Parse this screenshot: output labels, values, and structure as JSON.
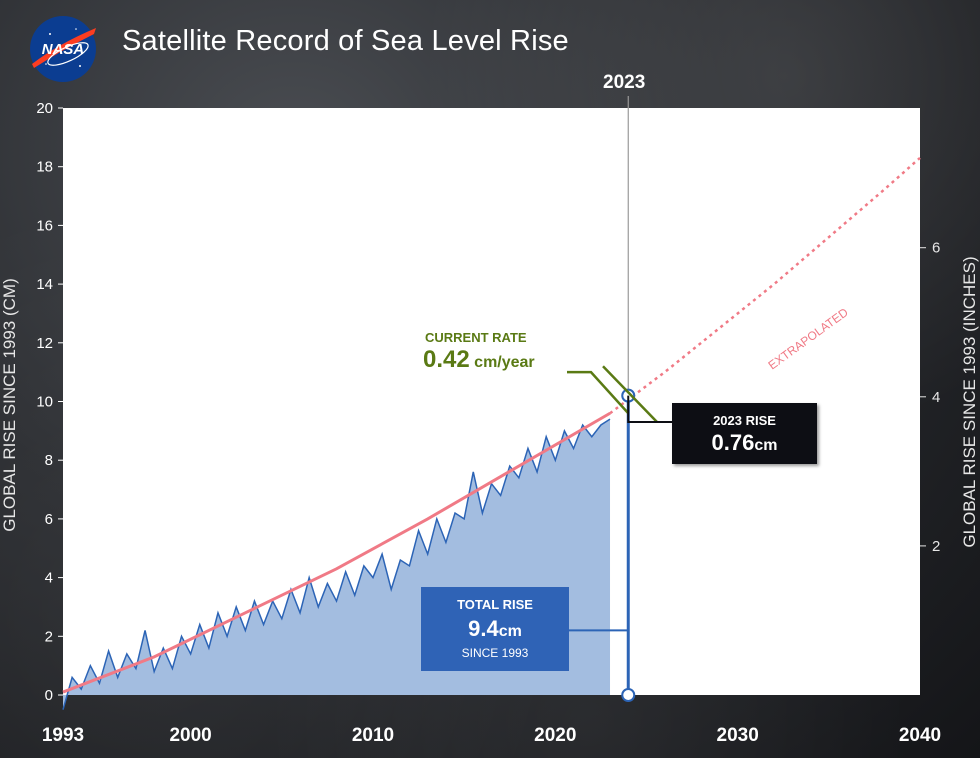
{
  "header": {
    "logo_text": "NASA",
    "title": "Satellite Record of Sea Level Rise"
  },
  "axes": {
    "left_title": "GLOBAL RISE SINCE 1993 (CM)",
    "right_title": "GLOBAL RISE SINCE 1993 (INCHES)",
    "marker_year": "2023"
  },
  "annotations": {
    "rate_label": "CURRENT RATE",
    "rate_value": "0.42",
    "rate_unit": " cm/year",
    "extrapolated_label": "EXTRAPOLATED",
    "rise_label": "2023 RISE",
    "rise_value": "0.76",
    "rise_unit": "cm",
    "total_label": "TOTAL RISE",
    "total_value": "9.4",
    "total_unit": "cm",
    "total_since": "SINCE 1993"
  },
  "colors": {
    "observed_fill": "#a3bde0",
    "observed_line": "#2c64b6",
    "trend_line": "#f07a86",
    "rate_green": "#5a7a14"
  },
  "chart_data": {
    "type": "area",
    "xlim": [
      1993,
      2040
    ],
    "ylim": [
      0,
      20
    ],
    "x_ticks": [
      1993,
      2000,
      2010,
      2020,
      2030,
      2040
    ],
    "x_tick_labels": [
      "1993",
      "2000",
      "2010",
      "2020",
      "2030",
      "2040"
    ],
    "y_ticks": [
      0,
      2,
      4,
      6,
      8,
      10,
      12,
      14,
      16,
      18,
      20
    ],
    "y_tick_labels": [
      "0",
      "2",
      "4",
      "6",
      "8",
      "10",
      "12",
      "14",
      "16",
      "18",
      "20"
    ],
    "right_axis": {
      "unit": "inches",
      "ticks": [
        2,
        4,
        6
      ],
      "tick_labels": [
        "2",
        "4",
        "6"
      ]
    },
    "series": [
      {
        "kind": "observed",
        "x": [
          1993.0,
          1993.5,
          1994.0,
          1994.5,
          1995.0,
          1995.5,
          1996.0,
          1996.5,
          1997.0,
          1997.5,
          1998.0,
          1998.5,
          1999.0,
          1999.5,
          2000.0,
          2000.5,
          2001.0,
          2001.5,
          2002.0,
          2002.5,
          2003.0,
          2003.5,
          2004.0,
          2004.5,
          2005.0,
          2005.5,
          2006.0,
          2006.5,
          2007.0,
          2007.5,
          2008.0,
          2008.5,
          2009.0,
          2009.5,
          2010.0,
          2010.5,
          2011.0,
          2011.5,
          2012.0,
          2012.5,
          2013.0,
          2013.5,
          2014.0,
          2014.5,
          2015.0,
          2015.5,
          2016.0,
          2016.5,
          2017.0,
          2017.5,
          2018.0,
          2018.5,
          2019.0,
          2019.5,
          2020.0,
          2020.5,
          2021.0,
          2021.5,
          2022.0,
          2022.5,
          2023.0
        ],
        "values": [
          -0.5,
          0.6,
          0.2,
          1.0,
          0.4,
          1.5,
          0.6,
          1.4,
          0.9,
          2.2,
          0.8,
          1.6,
          0.9,
          2.0,
          1.4,
          2.4,
          1.6,
          2.8,
          2.0,
          3.0,
          2.2,
          3.2,
          2.4,
          3.2,
          2.6,
          3.6,
          2.8,
          4.0,
          3.0,
          3.8,
          3.2,
          4.2,
          3.4,
          4.4,
          4.0,
          4.8,
          3.6,
          4.6,
          4.4,
          5.6,
          4.8,
          6.0,
          5.2,
          6.2,
          6.0,
          7.6,
          6.2,
          7.2,
          6.8,
          7.8,
          7.4,
          8.4,
          7.6,
          8.8,
          8.0,
          9.0,
          8.4,
          9.2,
          8.8,
          9.2,
          9.4
        ]
      },
      {
        "kind": "trend",
        "x": [
          1993,
          1998,
          2003,
          2008,
          2013,
          2018,
          2023
        ],
        "values": [
          0.1,
          1.3,
          2.8,
          4.3,
          6.0,
          7.8,
          9.6
        ]
      },
      {
        "kind": "extrapolated",
        "x": [
          2023,
          2026,
          2029,
          2032,
          2035,
          2038,
          2040
        ],
        "values": [
          9.6,
          11.0,
          12.5,
          14.0,
          15.6,
          17.2,
          18.3
        ]
      }
    ]
  }
}
